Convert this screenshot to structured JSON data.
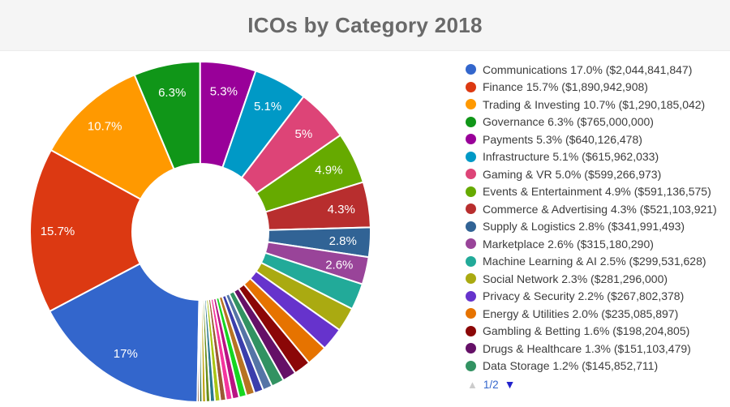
{
  "title": "ICOs by Category 2018",
  "chart_data": {
    "type": "pie",
    "donut_hole_ratio": 0.4,
    "rotation_clockwise_from_top_deg": 181,
    "legend_position": "right",
    "grid": false,
    "series": [
      {
        "name": "Communications",
        "percent": 17.0,
        "legend_pct": "17.0%",
        "slice_label": "17%",
        "amount": "$2,044,841,847",
        "color": "#3366CC"
      },
      {
        "name": "Finance",
        "percent": 15.7,
        "legend_pct": "15.7%",
        "slice_label": "15.7%",
        "amount": "$1,890,942,908",
        "color": "#DC3912"
      },
      {
        "name": "Trading & Investing",
        "percent": 10.7,
        "legend_pct": "10.7%",
        "slice_label": "10.7%",
        "amount": "$1,290,185,042",
        "color": "#FF9900"
      },
      {
        "name": "Governance",
        "percent": 6.3,
        "legend_pct": "6.3%",
        "slice_label": "6.3%",
        "amount": "$765,000,000",
        "color": "#109618"
      },
      {
        "name": "Payments",
        "percent": 5.3,
        "legend_pct": "5.3%",
        "slice_label": "5.3%",
        "amount": "$640,126,478",
        "color": "#990099"
      },
      {
        "name": "Infrastructure",
        "percent": 5.1,
        "legend_pct": "5.1%",
        "slice_label": "5.1%",
        "amount": "$615,962,033",
        "color": "#0099C6"
      },
      {
        "name": "Gaming & VR",
        "percent": 5.0,
        "legend_pct": "5.0%",
        "slice_label": "5%",
        "amount": "$599,266,973",
        "color": "#DD4477"
      },
      {
        "name": "Events & Entertainment",
        "percent": 4.9,
        "legend_pct": "4.9%",
        "slice_label": "4.9%",
        "amount": "$591,136,575",
        "color": "#66AA00"
      },
      {
        "name": "Commerce & Advertising",
        "percent": 4.3,
        "legend_pct": "4.3%",
        "slice_label": "4.3%",
        "amount": "$521,103,921",
        "color": "#B82E2E"
      },
      {
        "name": "Supply & Logistics",
        "percent": 2.8,
        "legend_pct": "2.8%",
        "slice_label": "2.8%",
        "amount": "$341,991,493",
        "color": "#316395"
      },
      {
        "name": "Marketplace",
        "percent": 2.6,
        "legend_pct": "2.6%",
        "slice_label": "2.6%",
        "amount": "$315,180,290",
        "color": "#994499"
      },
      {
        "name": "Machine Learning & AI",
        "percent": 2.5,
        "legend_pct": "2.5%",
        "slice_label": "",
        "amount": "$299,531,628",
        "color": "#22AA99"
      },
      {
        "name": "Social Network",
        "percent": 2.3,
        "legend_pct": "2.3%",
        "slice_label": "",
        "amount": "$281,296,000",
        "color": "#AAAA11"
      },
      {
        "name": "Privacy & Security",
        "percent": 2.2,
        "legend_pct": "2.2%",
        "slice_label": "",
        "amount": "$267,802,378",
        "color": "#6633CC"
      },
      {
        "name": "Energy & Utilities",
        "percent": 2.0,
        "legend_pct": "2.0%",
        "slice_label": "",
        "amount": "$235,085,897",
        "color": "#E67300"
      },
      {
        "name": "Gambling & Betting",
        "percent": 1.6,
        "legend_pct": "1.6%",
        "slice_label": "",
        "amount": "$198,204,805",
        "color": "#8B0707"
      },
      {
        "name": "Drugs & Healthcare",
        "percent": 1.3,
        "legend_pct": "1.3%",
        "slice_label": "",
        "amount": "$151,103,479",
        "color": "#651067"
      },
      {
        "name": "Data Storage",
        "percent": 1.2,
        "legend_pct": "1.2%",
        "slice_label": "",
        "amount": "$145,852,711",
        "color": "#329262"
      }
    ],
    "unlabeled_small_slices": {
      "total_percent": 7.2,
      "percents": [
        0.9,
        0.85,
        0.8,
        0.7,
        0.65,
        0.6,
        0.55,
        0.5,
        0.45,
        0.4,
        0.35,
        0.25,
        0.2
      ],
      "colors": [
        "#5574A6",
        "#3B3EAC",
        "#B77322",
        "#16D620",
        "#B91383",
        "#F4359E",
        "#9C5935",
        "#A9C413",
        "#2A778D",
        "#668D1C",
        "#BEA413",
        "#0C5922",
        "#743411"
      ]
    }
  },
  "legend": {
    "pagination": {
      "up_glyph": "▲",
      "current": "1/2",
      "down_glyph": "▼",
      "up_color": "#cccccc",
      "down_color": "#2222cc",
      "label_color": "#3366cc"
    }
  }
}
